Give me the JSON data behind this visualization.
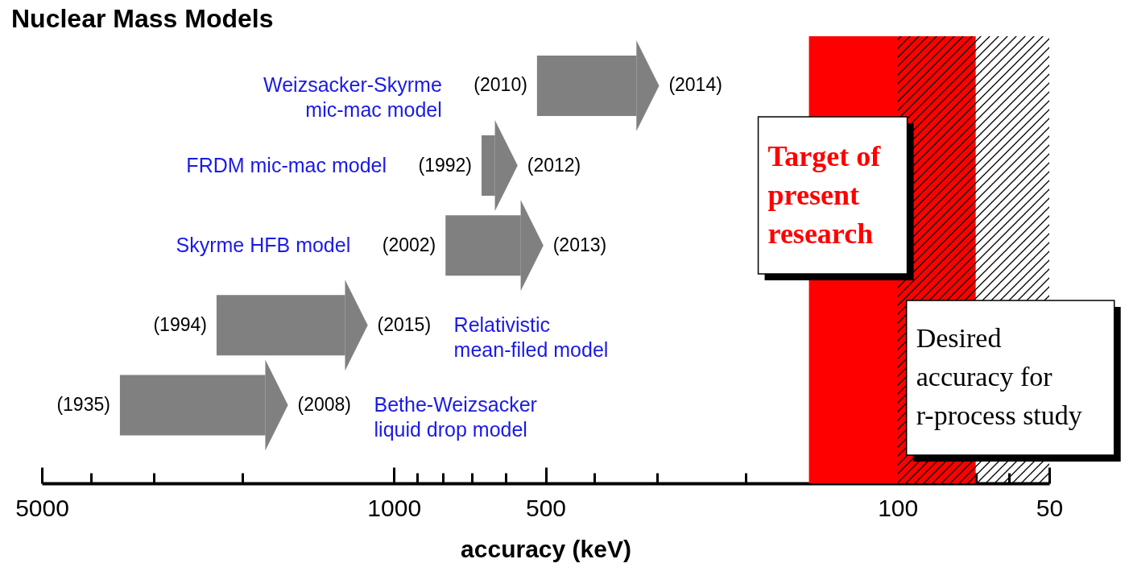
{
  "chart_data": {
    "type": "bar",
    "orientation": "horizontal",
    "title": "Nuclear Mass Models",
    "xlabel": "accuracy (keV)",
    "categories": [
      "Weizsacker-Skyrme mic-mac model",
      "FRDM mic-mac model",
      "Skyrme HFB model",
      "Relativistic mean-filed model",
      "Bethe-Weizsacker liquid drop model"
    ],
    "base": [
      520,
      670,
      790,
      2250,
      3500
    ],
    "values": [
      -190,
      -40,
      -230,
      -1000,
      -1700
    ],
    "color": "#808080",
    "log": "x",
    "xlim": [
      5000,
      50
    ],
    "xticks": [
      5000,
      {
        "value": 4000,
        "label": null
      },
      {
        "value": 3000,
        "label": null
      },
      {
        "value": 2000,
        "label": null
      },
      1000,
      {
        "value": 900,
        "label": null
      },
      {
        "value": 800,
        "label": null
      },
      {
        "value": 700,
        "label": null
      },
      {
        "value": 600,
        "label": null
      },
      500,
      {
        "value": 400,
        "label": null
      },
      {
        "value": 300,
        "label": null
      },
      {
        "value": 200,
        "label": null
      },
      100,
      {
        "value": 90,
        "label": null
      },
      {
        "value": 80,
        "label": null
      },
      {
        "value": 70,
        "label": null
      },
      {
        "value": 60,
        "label": null
      },
      50
    ],
    "bands": [
      {
        "axis": "x",
        "from": 150,
        "to": 70,
        "color": "#ff0000",
        "label": "Target of present research"
      },
      {
        "axis": "x",
        "from": 100,
        "to": 50,
        "label": "Desired accuracy for r-process study"
      }
    ],
    "annotations": [
      {
        "text": "(2010)",
        "x": 520,
        "y": "Weizsacker-Skyrme mic-mac model"
      },
      {
        "text": "(2014)",
        "x": 330,
        "y": "Weizsacker-Skyrme mic-mac model"
      },
      {
        "text": "(1992)",
        "x": 670,
        "y": "FRDM mic-mac model"
      },
      {
        "text": "(2012)",
        "x": 630,
        "y": "FRDM mic-mac model"
      },
      {
        "text": "(2002)",
        "x": 790,
        "y": "Skyrme HFB model"
      },
      {
        "text": "(2013)",
        "x": 560,
        "y": "Skyrme HFB model"
      },
      {
        "text": "(1994)",
        "x": 2250,
        "y": "Relativistic mean-filed model"
      },
      {
        "text": "(2015)",
        "x": 1250,
        "y": "Relativistic mean-filed model"
      },
      {
        "text": "(1935)",
        "x": 3500,
        "y": "Bethe-Weizsacker liquid drop model"
      },
      {
        "text": "(2008)",
        "x": 1800,
        "y": "Bethe-Weizsacker liquid drop model"
      }
    ]
  }
}
